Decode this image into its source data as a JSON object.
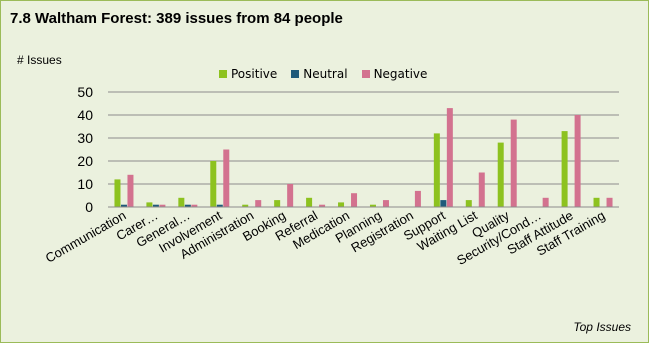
{
  "chart_data": {
    "type": "bar",
    "title": "7.8 Waltham Forest: 389 issues from 84 people",
    "ylabel": "# Issues",
    "footer": "Top Issues",
    "ylim": [
      0,
      50
    ],
    "yticks": [
      0,
      10,
      20,
      30,
      40,
      50
    ],
    "grid": true,
    "legend_position": "top",
    "categories": [
      "Communication",
      "Carer…",
      "General…",
      "Involvement",
      "Administration",
      "Booking",
      "Referral",
      "Medication",
      "Planning",
      "Registration",
      "Support",
      "Waiting List",
      "Quality",
      "Security/Cond…",
      "Staff Attitude",
      "Staff Training"
    ],
    "series": [
      {
        "name": "Positive",
        "color": "#8dc21f",
        "values": [
          12,
          2,
          4,
          20,
          1,
          3,
          4,
          2,
          1,
          0,
          32,
          3,
          28,
          0,
          33,
          4
        ]
      },
      {
        "name": "Neutral",
        "color": "#1f5a7a",
        "values": [
          1,
          1,
          1,
          1,
          0,
          0,
          0,
          0,
          0,
          0,
          3,
          0,
          0,
          0,
          0,
          0
        ]
      },
      {
        "name": "Negative",
        "color": "#d3728f",
        "values": [
          14,
          1,
          1,
          25,
          3,
          10,
          1,
          6,
          3,
          7,
          43,
          15,
          38,
          4,
          40,
          4
        ]
      }
    ]
  }
}
